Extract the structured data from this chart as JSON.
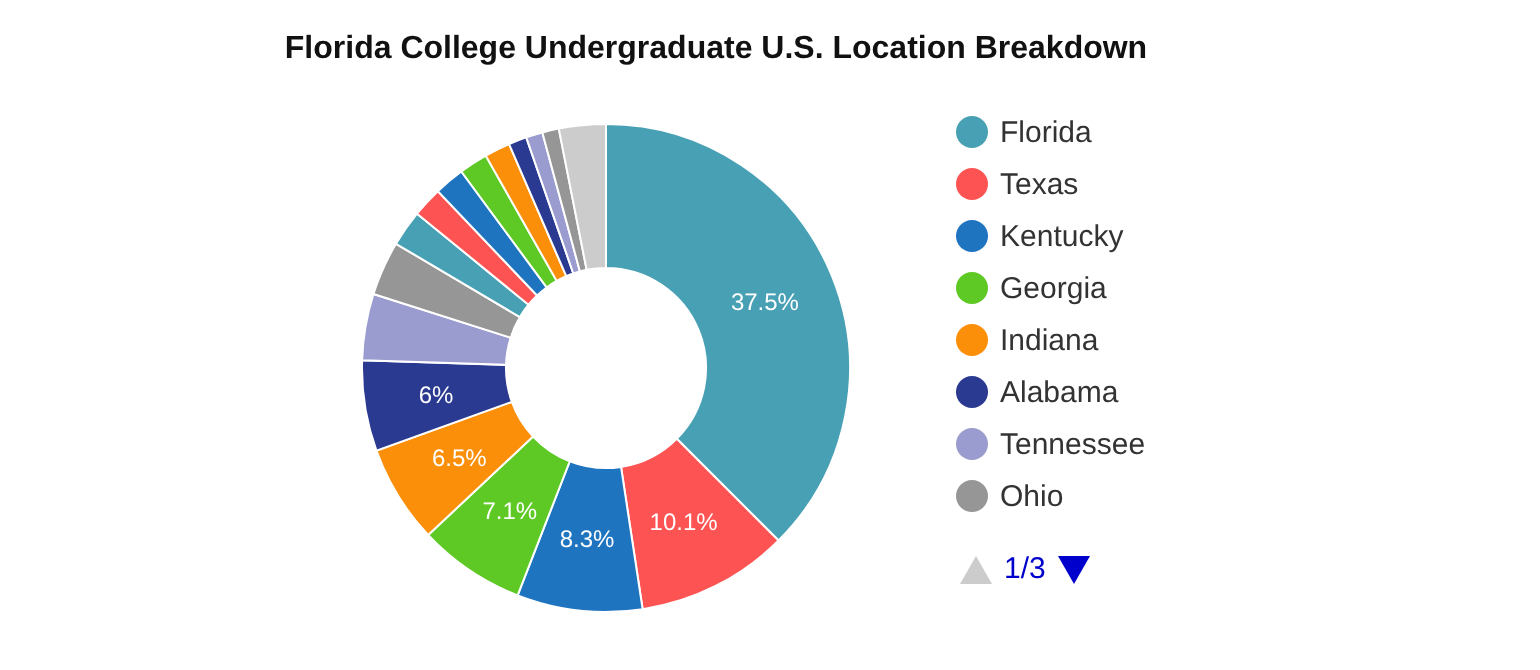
{
  "chart_data": {
    "type": "donut",
    "title": "Florida College Undergraduate U.S. Location Breakdown",
    "categories": [
      "Florida",
      "Texas",
      "Kentucky",
      "Georgia",
      "Indiana",
      "Alabama",
      "Tennessee",
      "Ohio",
      null,
      null,
      null,
      null,
      null,
      null,
      null,
      null,
      null
    ],
    "values": [
      37.5,
      10.1,
      8.3,
      7.1,
      6.5,
      6,
      4.4,
      3.6,
      2.4,
      2.0,
      2.0,
      1.9,
      1.7,
      1.2,
      1.1,
      1.1,
      3.1
    ],
    "value_labels": [
      "37.5%",
      "10.1%",
      "8.3%",
      "7.1%",
      "6.5%",
      "6%",
      null,
      null,
      null,
      null,
      null,
      null,
      null,
      null,
      null,
      null,
      null
    ],
    "colors": [
      "#48a0b4",
      "#fe5353",
      "#1f74c0",
      "#5ec925",
      "#fb8f0a",
      "#2a3a91",
      "#9a9bcf",
      "#969696",
      "#48a0b4",
      "#fe5353",
      "#1f74c0",
      "#5ec925",
      "#fb8f0a",
      "#2a3a91",
      "#9a9bcf",
      "#969696",
      "#cccccc"
    ],
    "legend": "right",
    "annotations": [
      "1/3"
    ]
  }
}
